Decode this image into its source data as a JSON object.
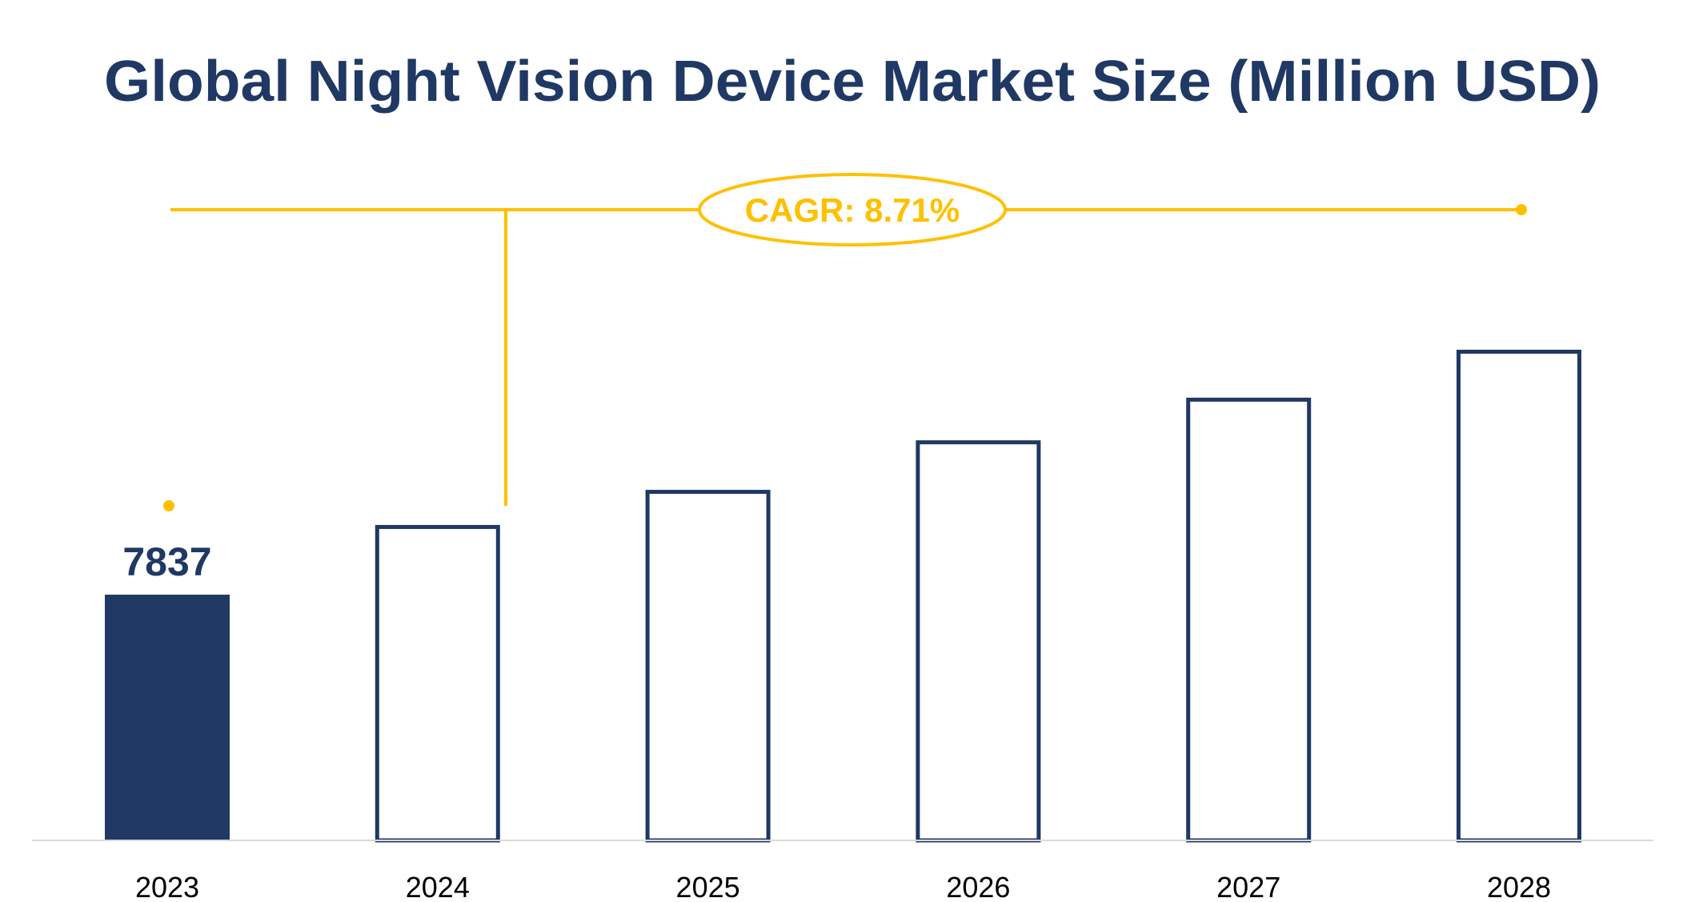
{
  "chart_data": {
    "type": "bar",
    "title": "Global Night Vision Device Market Size (Million USD)",
    "xlabel": "",
    "ylabel": "",
    "categories": [
      "2023",
      "2024",
      "2025",
      "2026",
      "2027",
      "2028"
    ],
    "values": [
      7837,
      10060,
      11180,
      12760,
      14120,
      15650
    ],
    "data_labels": [
      "7837",
      "",
      "",
      "",
      "",
      ""
    ],
    "ylim": [
      0,
      17000
    ],
    "grid": false,
    "legend": "none",
    "annotation": "CAGR: 8.71%",
    "colors": {
      "bar": "#203864",
      "annotation": "#FFC000",
      "axis": "#D9D9D9",
      "title": "#203864"
    }
  }
}
